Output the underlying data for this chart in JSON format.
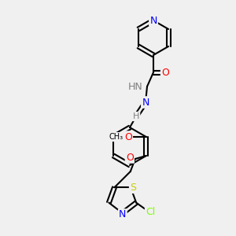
{
  "background_color": "#f0f0f0",
  "atom_colors": {
    "N": "#0000ff",
    "O": "#ff0000",
    "S": "#cccc00",
    "Cl": "#7fff00",
    "C": "#000000",
    "H": "#808080"
  },
  "title": "",
  "figsize": [
    3.0,
    3.0
  ],
  "dpi": 100
}
